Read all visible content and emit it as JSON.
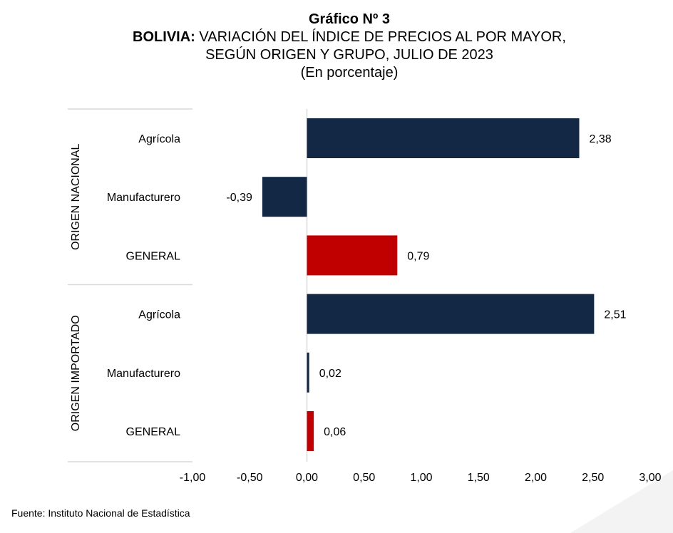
{
  "title": {
    "line1": "Gráfico Nº 3",
    "line2_bold": "BOLIVIA:",
    "line2_rest": " VARIACIÓN DEL ÍNDICE DE PRECIOS AL POR MAYOR,",
    "line3": "SEGÚN ORIGEN Y GRUPO, JULIO DE 2023",
    "line4": "(En porcentaje)"
  },
  "source": "Fuente: Instituto Nacional de Estadística",
  "colors": {
    "bar_default": "#132845",
    "bar_general": "#c00000"
  },
  "chart_data": {
    "type": "bar",
    "orientation": "horizontal",
    "xlim": [
      -1,
      3
    ],
    "xticks": [
      -1,
      -0.5,
      0,
      0.5,
      1,
      1.5,
      2,
      2.5,
      3
    ],
    "xtick_labels": [
      "-1,00",
      "-0,50",
      "0,00",
      "0,50",
      "1,00",
      "1,50",
      "2,00",
      "2,50",
      "3,00"
    ],
    "groups": [
      {
        "name": "ORIGEN NACIONAL",
        "categories": [
          "Agrícola",
          "Manufacturero",
          "GENERAL"
        ],
        "values": [
          2.38,
          -0.39,
          0.79
        ],
        "labels": [
          "2,38",
          "-0,39",
          "0,79"
        ],
        "highlight": [
          false,
          false,
          true
        ]
      },
      {
        "name": "ORIGEN IMPORTADO",
        "categories": [
          "Agrícola",
          "Manufacturero",
          "GENERAL"
        ],
        "values": [
          2.51,
          0.02,
          0.06
        ],
        "labels": [
          "2,51",
          "0,02",
          "0,06"
        ],
        "highlight": [
          false,
          false,
          true
        ]
      }
    ],
    "grid": false,
    "legend": false
  }
}
